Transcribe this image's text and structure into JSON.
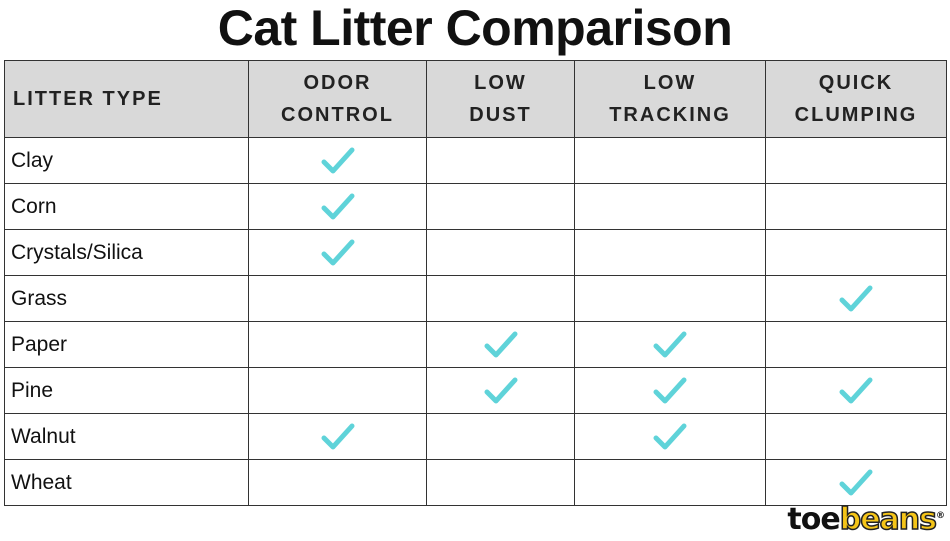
{
  "header": {
    "title": "Cat Litter Comparison"
  },
  "table": {
    "columns": [
      "LITTER TYPE",
      "ODOR\nCONTROL",
      "LOW\nDUST",
      "LOW\nTRACKING",
      "QUICK\nCLUMPING"
    ],
    "rows": [
      {
        "label": "Clay",
        "cells": [
          true,
          false,
          false,
          false
        ]
      },
      {
        "label": "Corn",
        "cells": [
          true,
          false,
          false,
          false
        ]
      },
      {
        "label": "Crystals/Silica",
        "cells": [
          true,
          false,
          false,
          false
        ]
      },
      {
        "label": "Grass",
        "cells": [
          false,
          false,
          false,
          true
        ]
      },
      {
        "label": "Paper",
        "cells": [
          false,
          true,
          true,
          false
        ]
      },
      {
        "label": "Pine",
        "cells": [
          false,
          true,
          true,
          true
        ]
      },
      {
        "label": "Walnut",
        "cells": [
          true,
          false,
          true,
          false
        ]
      },
      {
        "label": "Wheat",
        "cells": [
          false,
          false,
          false,
          true
        ]
      }
    ]
  },
  "logo": {
    "first": "toe",
    "second": "beans",
    "mark": "®"
  }
}
